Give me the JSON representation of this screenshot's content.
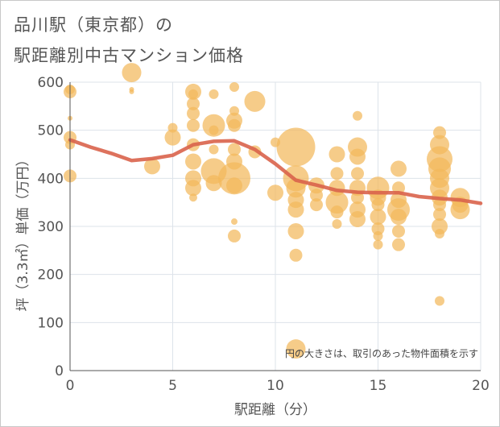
{
  "title_line1": "品川駅（東京都）の",
  "title_line2": "駅距離別中古マンション価格",
  "chart_data": {
    "type": "scatter",
    "title": "品川駅（東京都）の駅距離別中古マンション価格",
    "xlabel": "駅距離（分）",
    "ylabel": "坪（3.3㎡）単価（万円）",
    "xlim": [
      0,
      20
    ],
    "ylim": [
      0,
      600
    ],
    "xticks": [
      0,
      5,
      10,
      15,
      20
    ],
    "yticks": [
      0,
      100,
      200,
      300,
      400,
      500,
      600
    ],
    "grid": true,
    "note": "円の大きさは、取引のあった物件面積を示す",
    "bubble_color": "#f2b85b",
    "line_color": "#d9634b",
    "trend_line": {
      "x": [
        0,
        1,
        2,
        3,
        4,
        5,
        6,
        7,
        8,
        9,
        10,
        11,
        12,
        13,
        14,
        15,
        16,
        17,
        18,
        19,
        20
      ],
      "y": [
        480,
        465,
        452,
        437,
        441,
        448,
        470,
        477,
        478,
        460,
        430,
        396,
        386,
        375,
        371,
        370,
        370,
        362,
        358,
        355,
        348
      ]
    },
    "points": [
      {
        "x": 0,
        "y": 585,
        "s": 6
      },
      {
        "x": 0,
        "y": 580,
        "s": 8
      },
      {
        "x": 0,
        "y": 525,
        "s": 3
      },
      {
        "x": 0,
        "y": 485,
        "s": 8
      },
      {
        "x": 0,
        "y": 470,
        "s": 6
      },
      {
        "x": 0,
        "y": 405,
        "s": 8
      },
      {
        "x": 3,
        "y": 620,
        "s": 12
      },
      {
        "x": 3,
        "y": 585,
        "s": 3
      },
      {
        "x": 3,
        "y": 580,
        "s": 3
      },
      {
        "x": 4,
        "y": 425,
        "s": 10
      },
      {
        "x": 5,
        "y": 505,
        "s": 6
      },
      {
        "x": 5,
        "y": 485,
        "s": 10
      },
      {
        "x": 6,
        "y": 580,
        "s": 10
      },
      {
        "x": 6,
        "y": 575,
        "s": 6
      },
      {
        "x": 6,
        "y": 555,
        "s": 8
      },
      {
        "x": 6,
        "y": 535,
        "s": 8
      },
      {
        "x": 6,
        "y": 510,
        "s": 8
      },
      {
        "x": 6,
        "y": 470,
        "s": 8
      },
      {
        "x": 6,
        "y": 435,
        "s": 10
      },
      {
        "x": 6,
        "y": 400,
        "s": 10
      },
      {
        "x": 6,
        "y": 380,
        "s": 10
      },
      {
        "x": 6,
        "y": 360,
        "s": 5
      },
      {
        "x": 7,
        "y": 575,
        "s": 6
      },
      {
        "x": 7,
        "y": 510,
        "s": 14
      },
      {
        "x": 7,
        "y": 500,
        "s": 6
      },
      {
        "x": 7,
        "y": 460,
        "s": 6
      },
      {
        "x": 7,
        "y": 415,
        "s": 16
      },
      {
        "x": 7,
        "y": 390,
        "s": 10
      },
      {
        "x": 8,
        "y": 590,
        "s": 6
      },
      {
        "x": 8,
        "y": 540,
        "s": 6
      },
      {
        "x": 8,
        "y": 520,
        "s": 10
      },
      {
        "x": 8,
        "y": 510,
        "s": 8
      },
      {
        "x": 8,
        "y": 460,
        "s": 8
      },
      {
        "x": 8,
        "y": 435,
        "s": 10
      },
      {
        "x": 8,
        "y": 400,
        "s": 20
      },
      {
        "x": 8,
        "y": 385,
        "s": 10
      },
      {
        "x": 8,
        "y": 310,
        "s": 4
      },
      {
        "x": 8,
        "y": 280,
        "s": 8
      },
      {
        "x": 9,
        "y": 560,
        "s": 13
      },
      {
        "x": 9,
        "y": 455,
        "s": 8
      },
      {
        "x": 10,
        "y": 475,
        "s": 6
      },
      {
        "x": 10,
        "y": 370,
        "s": 10
      },
      {
        "x": 11,
        "y": 465,
        "s": 24
      },
      {
        "x": 11,
        "y": 400,
        "s": 16
      },
      {
        "x": 11,
        "y": 380,
        "s": 12
      },
      {
        "x": 11,
        "y": 355,
        "s": 10
      },
      {
        "x": 11,
        "y": 335,
        "s": 10
      },
      {
        "x": 11,
        "y": 290,
        "s": 10
      },
      {
        "x": 11,
        "y": 240,
        "s": 8
      },
      {
        "x": 11,
        "y": 45,
        "s": 12
      },
      {
        "x": 12,
        "y": 385,
        "s": 10
      },
      {
        "x": 12,
        "y": 365,
        "s": 8
      },
      {
        "x": 12,
        "y": 345,
        "s": 8
      },
      {
        "x": 13,
        "y": 450,
        "s": 10
      },
      {
        "x": 13,
        "y": 410,
        "s": 8
      },
      {
        "x": 13,
        "y": 380,
        "s": 10
      },
      {
        "x": 13,
        "y": 350,
        "s": 14
      },
      {
        "x": 13,
        "y": 330,
        "s": 8
      },
      {
        "x": 13,
        "y": 305,
        "s": 6
      },
      {
        "x": 14,
        "y": 530,
        "s": 6
      },
      {
        "x": 14,
        "y": 465,
        "s": 12
      },
      {
        "x": 14,
        "y": 445,
        "s": 10
      },
      {
        "x": 14,
        "y": 410,
        "s": 8
      },
      {
        "x": 14,
        "y": 380,
        "s": 10
      },
      {
        "x": 14,
        "y": 360,
        "s": 8
      },
      {
        "x": 14,
        "y": 335,
        "s": 10
      },
      {
        "x": 14,
        "y": 315,
        "s": 10
      },
      {
        "x": 15,
        "y": 380,
        "s": 14
      },
      {
        "x": 15,
        "y": 360,
        "s": 10
      },
      {
        "x": 15,
        "y": 345,
        "s": 8
      },
      {
        "x": 15,
        "y": 320,
        "s": 10
      },
      {
        "x": 15,
        "y": 295,
        "s": 8
      },
      {
        "x": 15,
        "y": 280,
        "s": 6
      },
      {
        "x": 15,
        "y": 262,
        "s": 6
      },
      {
        "x": 16,
        "y": 420,
        "s": 10
      },
      {
        "x": 16,
        "y": 380,
        "s": 8
      },
      {
        "x": 16,
        "y": 355,
        "s": 10
      },
      {
        "x": 16,
        "y": 335,
        "s": 14
      },
      {
        "x": 16,
        "y": 320,
        "s": 10
      },
      {
        "x": 16,
        "y": 290,
        "s": 8
      },
      {
        "x": 16,
        "y": 262,
        "s": 8
      },
      {
        "x": 18,
        "y": 495,
        "s": 8
      },
      {
        "x": 18,
        "y": 470,
        "s": 12
      },
      {
        "x": 18,
        "y": 440,
        "s": 16
      },
      {
        "x": 18,
        "y": 420,
        "s": 14
      },
      {
        "x": 18,
        "y": 400,
        "s": 12
      },
      {
        "x": 18,
        "y": 380,
        "s": 12
      },
      {
        "x": 18,
        "y": 360,
        "s": 10
      },
      {
        "x": 18,
        "y": 345,
        "s": 8
      },
      {
        "x": 18,
        "y": 325,
        "s": 8
      },
      {
        "x": 18,
        "y": 300,
        "s": 10
      },
      {
        "x": 18,
        "y": 285,
        "s": 6
      },
      {
        "x": 18,
        "y": 145,
        "s": 6
      },
      {
        "x": 19,
        "y": 360,
        "s": 12
      },
      {
        "x": 19,
        "y": 345,
        "s": 10
      },
      {
        "x": 19,
        "y": 335,
        "s": 12
      }
    ]
  }
}
